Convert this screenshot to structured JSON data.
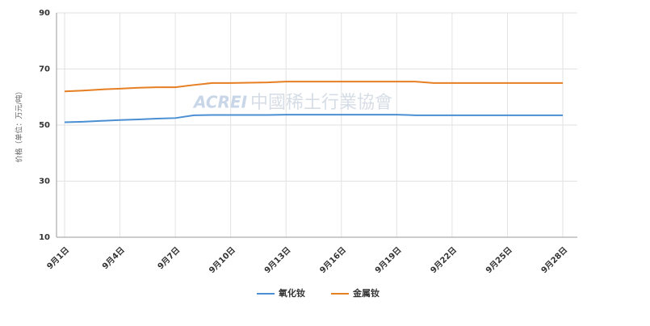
{
  "chart_data": {
    "type": "line",
    "y_label": "价格（单位：万元/吨）",
    "watermark": [
      "ACREI",
      "中國稀土行業協會"
    ],
    "categories": [
      "9月1日",
      null,
      null,
      "9月4日",
      null,
      null,
      "9月7日",
      null,
      null,
      "9月10日",
      null,
      null,
      "9月13日",
      null,
      null,
      "9月16日",
      null,
      null,
      "9月19日",
      null,
      null,
      "9月22日",
      null,
      null,
      "9月25日",
      null,
      null,
      "9月28日"
    ],
    "series": [
      {
        "name": "氧化钕",
        "color": "#4a8fd4",
        "values": [
          51.0,
          51.2,
          51.5,
          51.8,
          52.0,
          52.3,
          52.5,
          53.5,
          53.6,
          53.6,
          53.6,
          53.6,
          53.7,
          53.7,
          53.7,
          53.7,
          53.7,
          53.7,
          53.7,
          53.5,
          53.5,
          53.5,
          53.5,
          53.5,
          53.5,
          53.5,
          53.5,
          53.5
        ]
      },
      {
        "name": "金属钕",
        "color": "#e67e22",
        "values": [
          62.0,
          62.3,
          62.7,
          63.0,
          63.3,
          63.5,
          63.5,
          64.3,
          65.0,
          65.0,
          65.1,
          65.2,
          65.5,
          65.5,
          65.5,
          65.5,
          65.5,
          65.5,
          65.5,
          65.5,
          65.0,
          65.0,
          65.0,
          65.0,
          65.0,
          65.0,
          65.0,
          65.0
        ]
      }
    ],
    "ylim": [
      10,
      90
    ],
    "yticks": [
      10,
      30,
      50,
      70,
      90
    ],
    "grid": true
  }
}
